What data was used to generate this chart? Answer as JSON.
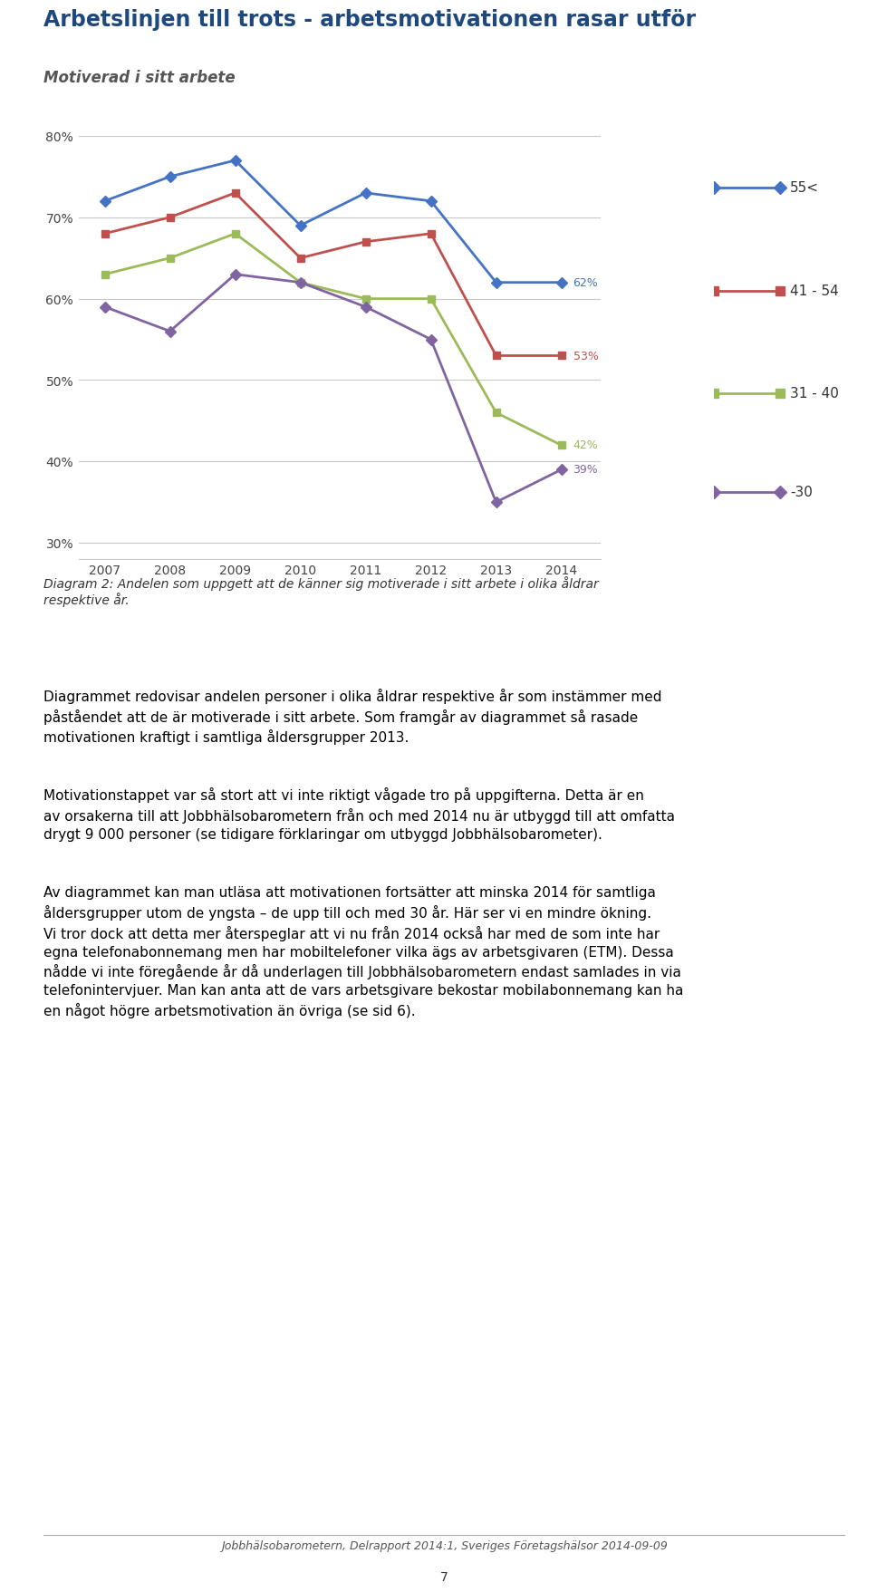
{
  "title": "Arbetslinjen till trots - arbetsmotivationen rasar utför",
  "subtitle": "Motiverad i sitt arbete",
  "years": [
    2007,
    2008,
    2009,
    2010,
    2011,
    2012,
    2013,
    2014
  ],
  "series_order": [
    "55<",
    "41-54",
    "31-40",
    "-30"
  ],
  "series": {
    "55<": {
      "values": [
        72,
        75,
        77,
        69,
        73,
        72,
        62,
        62
      ],
      "color": "#4472C4",
      "label": "55<"
    },
    "41-54": {
      "values": [
        68,
        70,
        73,
        65,
        67,
        68,
        53,
        53
      ],
      "color": "#C0504D",
      "label": "41 - 54"
    },
    "31-40": {
      "values": [
        63,
        65,
        68,
        62,
        60,
        60,
        46,
        42
      ],
      "color": "#9BBB59",
      "label": "31 - 40"
    },
    "-30": {
      "values": [
        59,
        56,
        63,
        62,
        59,
        55,
        35,
        39
      ],
      "color": "#8064A2",
      "label": "-30"
    }
  },
  "end_labels": {
    "55<": {
      "value": 62,
      "text": "62%",
      "color": "#4472C4"
    },
    "41-54": {
      "value": 53,
      "text": "53%",
      "color": "#C0504D"
    },
    "31-40": {
      "value": 42,
      "text": "42%",
      "color": "#9BBB59"
    },
    "-30": {
      "value": 39,
      "text": "39%",
      "color": "#8064A2"
    }
  },
  "marker_styles": {
    "55<": {
      "marker": "D",
      "size": 6
    },
    "41-54": {
      "marker": "s",
      "size": 6
    },
    "31-40": {
      "marker": "s",
      "size": 6
    },
    "-30": {
      "marker": "D",
      "size": 6
    }
  },
  "ylim": [
    28,
    83
  ],
  "yticks": [
    30,
    40,
    50,
    60,
    70,
    80
  ],
  "ytick_labels": [
    "30%",
    "40%",
    "50%",
    "60%",
    "70%",
    "80%"
  ],
  "caption": "Diagram 2: Andelen som uppgett att de känner sig motiverade i sitt arbete i olika åldrar\nrespektive år.",
  "body_paragraphs": [
    "Diagrammet redovisar andelen personer i olika åldrar respektive år som instämmer med påståendet att de är motiverade i sitt arbete. Som framgår av diagrammet så rasade motivationen kraftigt i samtliga åldersgrupper 2013.",
    "Motivationstappet var så stort att vi inte riktigt vågade tro på uppgifterna. Detta är en av orsakerna till att Jobbhälsobarometern från och med 2014 nu är utbyggd till att omfatta drygt 9 000 personer (se tidigare förklaringar om utbyggd Jobbhälsobarometer).",
    "Av diagrammet kan man utläsa att motivationen fortsätter att minska 2014 för samtliga åldersgrupper utom de yngsta – de upp till och med 30 år. Här ser vi en mindre ökning.\nVi tror dock att detta mer återspeglar att vi nu från 2014 också har med de som inte har egna telefonabonnemang men har mobiltelefoner vilka ägs av arbetsgivaren (ETM). Dessa nådde vi inte föregående år då underlagen till Jobbhälsobarometern endast samlades in via telefonintervjuer. Man kan anta att de vars arbetsgivare bekostar mobilabonnemang kan ha en något högre arbetsmotivation än övriga (se sid 6)."
  ],
  "footer": "Jobbhälsobarometern, Delrapport 2014:1, Sveriges Företagshälsor 2014-09-09",
  "page_number": "7",
  "title_color": "#1F497D",
  "subtitle_bg_color": "#D9E2F0",
  "caption_bg_color": "#D9E2F0",
  "background_color": "#FFFFFF",
  "legend_entries": [
    {
      "label": "55<",
      "color": "#4472C4",
      "marker": "D"
    },
    {
      "label": "41 - 54",
      "color": "#C0504D",
      "marker": "s"
    },
    {
      "label": "31 - 40",
      "color": "#9BBB59",
      "marker": "s"
    },
    {
      "label": "-30",
      "color": "#8064A2",
      "marker": "D"
    }
  ]
}
